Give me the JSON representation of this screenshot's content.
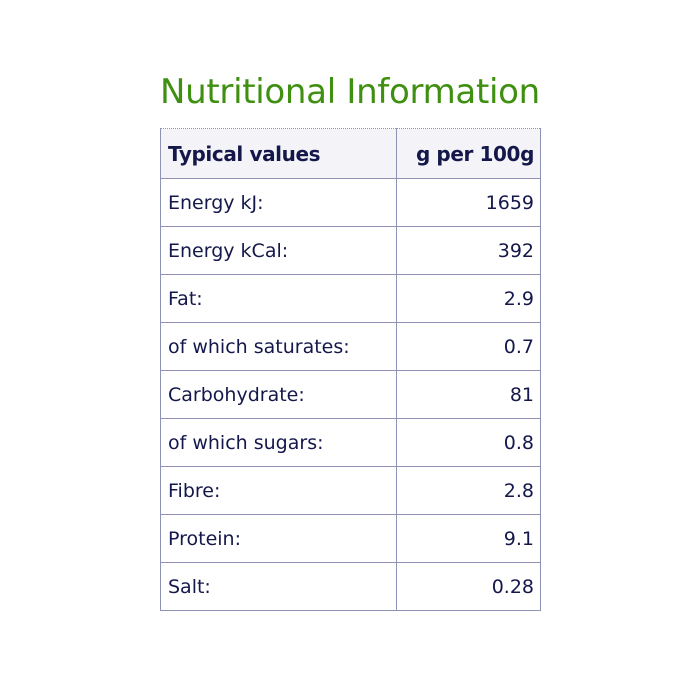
{
  "title": "Nutritional Information",
  "table": {
    "headers": [
      "Typical values",
      "g per 100g"
    ],
    "rows": [
      {
        "label": "Energy kJ:",
        "value": "1659"
      },
      {
        "label": "Energy kCal:",
        "value": "392"
      },
      {
        "label": "Fat:",
        "value": "2.9"
      },
      {
        "label": "of which saturates:",
        "value": "0.7"
      },
      {
        "label": "Carbohydrate:",
        "value": "81"
      },
      {
        "label": "of which sugars:",
        "value": "0.8"
      },
      {
        "label": "Fibre:",
        "value": "2.8"
      },
      {
        "label": "Protein:",
        "value": "9.1"
      },
      {
        "label": "Salt:",
        "value": "0.28"
      }
    ]
  },
  "colors": {
    "title": "#3f8f10",
    "text": "#14174a",
    "border": "#8e92b4",
    "header_background": "#f3f3f8"
  }
}
